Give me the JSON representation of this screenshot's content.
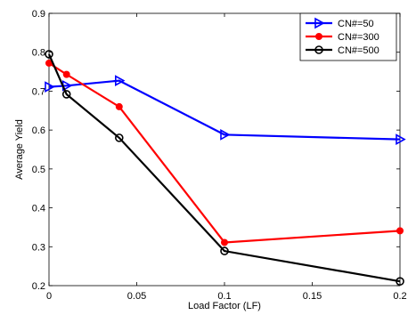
{
  "chart_data": {
    "type": "line",
    "xlabel": "Load Factor (LF)",
    "ylabel": "Average Yield",
    "xlim": [
      0,
      0.2
    ],
    "ylim": [
      0.2,
      0.9
    ],
    "xticks": [
      0,
      0.05,
      0.1,
      0.15,
      0.2
    ],
    "xtick_labels": [
      "0",
      "0.05",
      "0.1",
      "0.15",
      "0.2"
    ],
    "yticks": [
      0.2,
      0.3,
      0.4,
      0.5,
      0.6,
      0.7,
      0.8,
      0.9
    ],
    "ytick_labels": [
      "0.2",
      "0.3",
      "0.4",
      "0.5",
      "0.6",
      "0.7",
      "0.8",
      "0.9"
    ],
    "grid": false,
    "legend_position": "top-right",
    "x": [
      0,
      0.01,
      0.04,
      0.1,
      0.2
    ],
    "series": [
      {
        "name": "CN#=50",
        "color": "#0000ff",
        "marker": "triangle-right",
        "values": [
          0.711,
          0.714,
          0.727,
          0.588,
          0.576
        ]
      },
      {
        "name": "CN#=300",
        "color": "#ff0000",
        "marker": "filled-circle",
        "values": [
          0.772,
          0.743,
          0.66,
          0.311,
          0.341
        ]
      },
      {
        "name": "CN#=500",
        "color": "#000000",
        "marker": "open-circle",
        "values": [
          0.795,
          0.692,
          0.58,
          0.289,
          0.211
        ]
      }
    ]
  }
}
